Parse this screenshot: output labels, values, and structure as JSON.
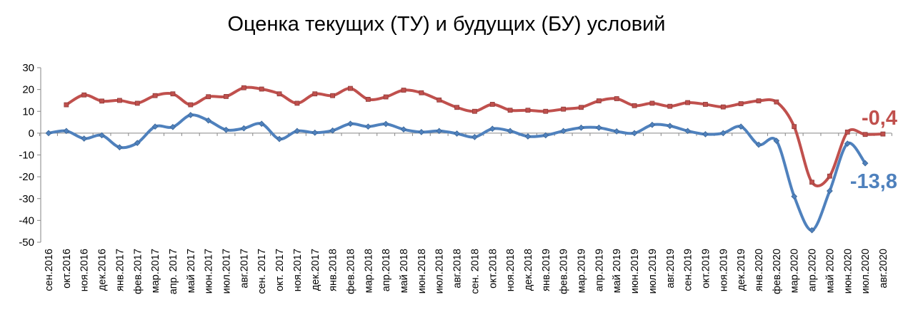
{
  "chart_data": {
    "type": "line",
    "title": "Оценка текущих (ТУ) и будущих (БУ) условий",
    "xlabel": "",
    "ylabel": "",
    "ylim": [
      -50,
      30
    ],
    "yticks": [
      30,
      20,
      10,
      0,
      -10,
      -20,
      -30,
      -40,
      -50
    ],
    "grid": false,
    "legend": "none",
    "categories": [
      "сен.2016",
      "окт.2016",
      "ноя.2016",
      "дек.2016",
      "янв.2017",
      "фев.2017",
      "мар.2017",
      "апр. 2017",
      "май 2017",
      "июн.2017",
      "июл.2017",
      "авг.2017",
      "сен. 2017",
      "окт. 2017",
      "ноя.2017",
      "дек.2017",
      "янв.2018",
      "фев.2018",
      "мар.2018",
      "апр.2018",
      "май 2018",
      "июн.2018",
      "июл.2018",
      "авг.2018",
      "сен. 2018",
      "окт.2018",
      "ноя.2018",
      "дек.2018",
      "янв.2019",
      "фев.2019",
      "мар.2019",
      "апр.2019",
      "май 2019",
      "июн.2019",
      "июл.2019",
      "авг.2019",
      "сен.2019",
      "окт.2019",
      "ноя.2019",
      "дек.2019",
      "янв.2020",
      "фев.2020",
      "мар.2020",
      "апр.2020",
      "май 2020",
      "июн.2020",
      "июл.2020",
      "авг.2020"
    ],
    "series": [
      {
        "color": "#c0504d",
        "values": [
          null,
          13,
          17.5,
          14.7,
          15,
          13.7,
          17.2,
          18,
          13,
          16.7,
          16.8,
          20.8,
          20.2,
          18,
          13.7,
          18,
          17.2,
          20.5,
          15.5,
          16.6,
          19.7,
          18.5,
          15.2,
          11.8,
          10,
          13.2,
          10.5,
          10.5,
          10,
          11,
          11.8,
          14.8,
          15.8,
          12.6,
          13.7,
          12.3,
          14,
          13.2,
          12,
          13.5,
          14.8,
          14.3,
          3,
          -22.5,
          -19.7,
          0.5,
          -0.6,
          -0.4
        ],
        "last_label": "-0,4"
      },
      {
        "color": "#4f81bd",
        "values": [
          0,
          1,
          -2.5,
          -1,
          -6.5,
          -4.5,
          3,
          2.8,
          8.3,
          5.8,
          1.5,
          2.2,
          4.3,
          -2.7,
          1,
          0.2,
          1.2,
          4.3,
          3,
          4.2,
          1.7,
          0.5,
          1,
          -0.2,
          -1.8,
          2,
          1,
          -1.5,
          -1,
          1,
          2.5,
          2.5,
          0.8,
          0,
          3.8,
          3.3,
          1,
          -0.5,
          0,
          3,
          -5.3,
          -3.5,
          -29,
          -44.5,
          -26.5,
          -4.8,
          -13.8,
          null
        ],
        "last_label": "-13,8"
      }
    ]
  }
}
